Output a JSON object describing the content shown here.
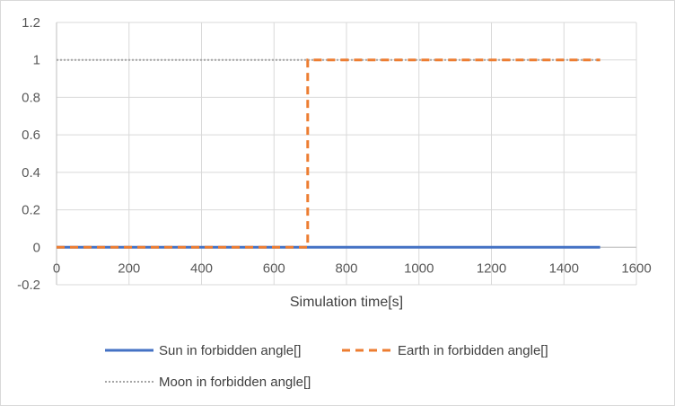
{
  "chart_data": {
    "type": "line",
    "title": "",
    "xlabel": "Simulation time[s]",
    "ylabel": "",
    "xlim": [
      0,
      1600
    ],
    "ylim": [
      -0.2,
      1.2
    ],
    "x_ticks": [
      0,
      200,
      400,
      600,
      800,
      1000,
      1200,
      1400,
      1600
    ],
    "y_ticks": [
      -0.2,
      0,
      0.2,
      0.4,
      0.6,
      0.8,
      1,
      1.2
    ],
    "grid": true,
    "legend_position": "bottom",
    "series": [
      {
        "name": "Sun in forbidden angle[]",
        "color": "#4472C4",
        "style": "solid",
        "points": [
          [
            0,
            0
          ],
          [
            1500,
            0
          ]
        ]
      },
      {
        "name": "Earth in forbidden angle[]",
        "color": "#ED7D31",
        "style": "dashed",
        "points": [
          [
            0,
            0
          ],
          [
            693,
            0
          ],
          [
            693,
            1
          ],
          [
            1500,
            1
          ]
        ]
      },
      {
        "name": "Moon in forbidden angle[]",
        "color": "#A5A5A5",
        "style": "dotted",
        "points": [
          [
            0,
            1
          ],
          [
            1500,
            1
          ]
        ]
      }
    ]
  }
}
